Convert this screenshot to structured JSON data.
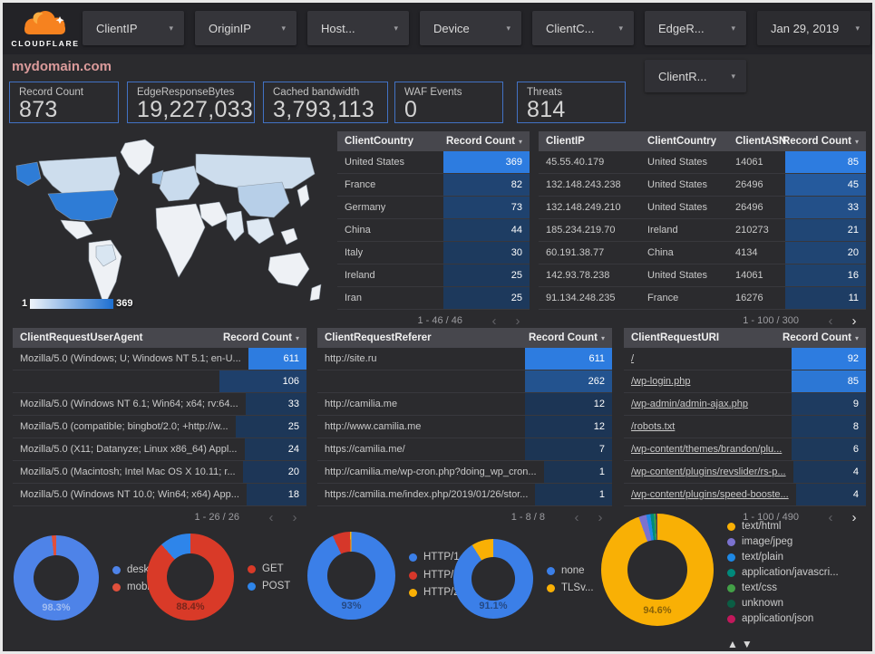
{
  "topbar": {
    "logo_text": "CLOUDFLARE",
    "filters": [
      "ClientIP",
      "OriginIP",
      "Host...",
      "Device",
      "ClientC...",
      "EdgeR...",
      "Jan 29, 2019"
    ],
    "filters_row2": [
      "ClientR..."
    ]
  },
  "page_title": "mydomain.com",
  "scorecards": [
    {
      "label": "Record Count",
      "value": "873"
    },
    {
      "label": "EdgeResponseBytes",
      "value": "19,227,033"
    },
    {
      "label": "Cached bandwidth",
      "value": "3,793,113"
    },
    {
      "label": "WAF Events",
      "value": "0"
    },
    {
      "label": "Threats",
      "value": "814"
    }
  ],
  "map": {
    "legend_min": "1",
    "legend_max": "369"
  },
  "colors": {
    "bar_min": "#1c3452",
    "bar_max": "#2d7ce0",
    "accent_border": "#4272c4",
    "title": "#db9b9b"
  },
  "tables": {
    "country": {
      "headers": [
        "ClientCountry",
        "Record Count"
      ],
      "rows": [
        [
          "United States",
          369
        ],
        [
          "France",
          82
        ],
        [
          "Germany",
          73
        ],
        [
          "China",
          44
        ],
        [
          "Italy",
          30
        ],
        [
          "Ireland",
          25
        ],
        [
          "Iran",
          25
        ]
      ],
      "pagination": "1 - 46 / 46",
      "prev_active": false,
      "next_active": false
    },
    "ip": {
      "headers": [
        "ClientIP",
        "ClientCountry",
        "ClientASN",
        "Record Count"
      ],
      "rows": [
        [
          "45.55.40.179",
          "United States",
          "14061",
          85
        ],
        [
          "132.148.243.238",
          "United States",
          "26496",
          45
        ],
        [
          "132.148.249.210",
          "United States",
          "26496",
          33
        ],
        [
          "185.234.219.70",
          "Ireland",
          "210273",
          21
        ],
        [
          "60.191.38.77",
          "China",
          "4134",
          20
        ],
        [
          "142.93.78.238",
          "United States",
          "14061",
          16
        ],
        [
          "91.134.248.235",
          "France",
          "16276",
          11
        ]
      ],
      "pagination": "1 - 100 / 300",
      "prev_active": false,
      "next_active": true
    },
    "ua": {
      "headers": [
        "ClientRequestUserAgent",
        "Record Count"
      ],
      "rows": [
        [
          "Mozilla/5.0 (Windows; U; Windows NT 5.1; en-U...",
          611
        ],
        [
          "",
          106
        ],
        [
          "Mozilla/5.0 (Windows NT 6.1; Win64; x64; rv:64...",
          33
        ],
        [
          "Mozilla/5.0 (compatible; bingbot/2.0; +http://w...",
          25
        ],
        [
          "Mozilla/5.0 (X11; Datanyze; Linux x86_64) Appl...",
          24
        ],
        [
          "Mozilla/5.0 (Macintosh; Intel Mac OS X 10.11; r...",
          20
        ],
        [
          "Mozilla/5.0 (Windows NT 10.0; Win64; x64) App...",
          18
        ]
      ],
      "pagination": "1 - 26 / 26",
      "prev_active": false,
      "next_active": false
    },
    "referer": {
      "headers": [
        "ClientRequestReferer",
        "Record Count"
      ],
      "rows": [
        [
          "http://site.ru",
          611
        ],
        [
          "",
          262
        ],
        [
          "http://camilia.me",
          12
        ],
        [
          "http://www.camilia.me",
          12
        ],
        [
          "https://camilia.me/",
          7
        ],
        [
          "http://camilia.me/wp-cron.php?doing_wp_cron...",
          1
        ],
        [
          "https://camilia.me/index.php/2019/01/26/stor...",
          1
        ]
      ],
      "pagination": "1 - 8 / 8",
      "prev_active": false,
      "next_active": false
    },
    "uri": {
      "headers": [
        "ClientRequestURI",
        "Record Count"
      ],
      "links": true,
      "rows": [
        [
          "/",
          92
        ],
        [
          "/wp-login.php",
          85
        ],
        [
          "/wp-admin/admin-ajax.php",
          9
        ],
        [
          "/robots.txt",
          8
        ],
        [
          "/wp-content/themes/brandon/plu...",
          6
        ],
        [
          "/wp-content/plugins/revslider/rs-p...",
          4
        ],
        [
          "/wp-content/plugins/speed-booste...",
          4
        ]
      ],
      "pagination": "1 - 100 / 490",
      "prev_active": false,
      "next_active": true
    }
  },
  "donuts": [
    {
      "name": "device-type",
      "label": "98.3%",
      "label_color": "rgba(230,236,248,0.55)",
      "slices": [
        {
          "name": "deskt...",
          "color": "#4e83e8",
          "pct": 98.3
        },
        {
          "name": "mobile",
          "color": "#e0503c",
          "pct": 1.7
        }
      ]
    },
    {
      "name": "http-method",
      "label": "88.4%",
      "label_color": "rgba(40,20,16,0.55)",
      "slices": [
        {
          "name": "GET",
          "color": "#d93a28",
          "pct": 88.4
        },
        {
          "name": "POST",
          "color": "#2e85ea",
          "pct": 11.6
        }
      ]
    },
    {
      "name": "http-version",
      "label": "93%",
      "label_color": "rgba(20,30,48,0.55)",
      "slices": [
        {
          "name": "HTTP/1.1",
          "color": "#3b7fe8",
          "pct": 93
        },
        {
          "name": "HTTP/1.0",
          "color": "#d6372a",
          "pct": 6.5
        },
        {
          "name": "HTTP/2",
          "color": "#f9b005",
          "pct": 0.5
        }
      ]
    },
    {
      "name": "tls-version",
      "label": "91.1%",
      "label_color": "rgba(20,30,48,0.55)",
      "slices": [
        {
          "name": "none",
          "color": "#3b7fe8",
          "pct": 91.1
        },
        {
          "name": "TLSv...",
          "color": "#f9b005",
          "pct": 8.9
        }
      ]
    },
    {
      "name": "content-type",
      "label": "94.6%",
      "label_color": "rgba(90,65,10,0.7)",
      "sort_arrows": true,
      "slices": [
        {
          "name": "text/html",
          "color": "#f9b005",
          "pct": 94.6
        },
        {
          "name": "image/jpeg",
          "color": "#7b72cf",
          "pct": 2.2
        },
        {
          "name": "text/plain",
          "color": "#1e88e5",
          "pct": 1.2
        },
        {
          "name": "application/javascri...",
          "color": "#00897b",
          "pct": 1.0
        },
        {
          "name": "text/css",
          "color": "#43a047",
          "pct": 0.5
        },
        {
          "name": "unknown",
          "color": "#0b5d44",
          "pct": 0.3
        },
        {
          "name": "application/json",
          "color": "#c2185b",
          "pct": 0.2
        }
      ]
    }
  ]
}
